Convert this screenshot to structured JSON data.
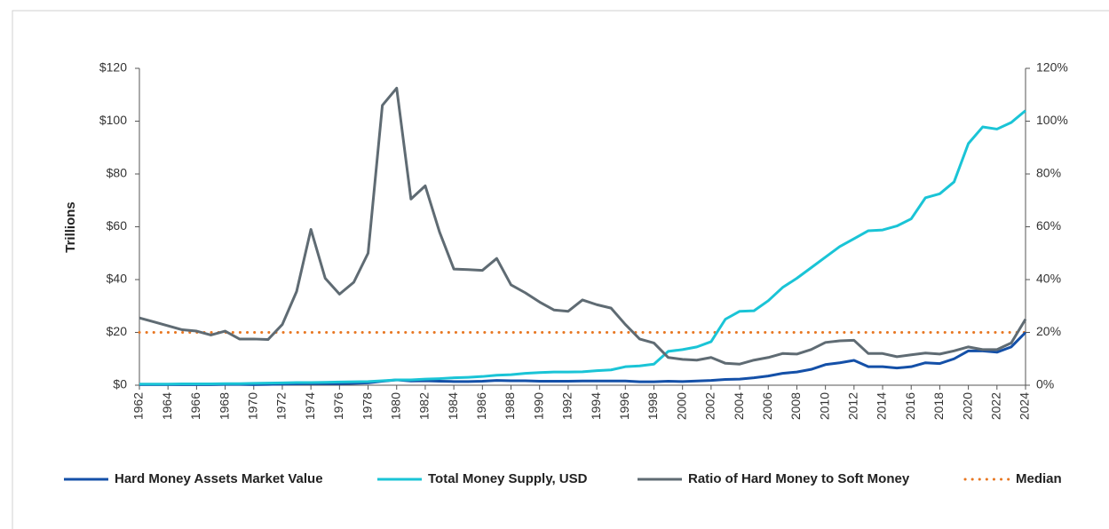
{
  "chart_data": {
    "type": "line",
    "y_label": "Trillions",
    "x": [
      1962,
      1963,
      1964,
      1965,
      1966,
      1967,
      1968,
      1969,
      1970,
      1971,
      1972,
      1973,
      1974,
      1975,
      1976,
      1977,
      1978,
      1979,
      1980,
      1981,
      1982,
      1983,
      1984,
      1985,
      1986,
      1987,
      1988,
      1989,
      1990,
      1991,
      1992,
      1993,
      1994,
      1995,
      1996,
      1997,
      1998,
      1999,
      2000,
      2001,
      2002,
      2003,
      2004,
      2005,
      2006,
      2007,
      2008,
      2009,
      2010,
      2011,
      2012,
      2013,
      2014,
      2015,
      2016,
      2017,
      2018,
      2019,
      2020,
      2021,
      2022,
      2023,
      2024
    ],
    "xlim": [
      1962,
      2024
    ],
    "xticks": [
      1962,
      1964,
      1966,
      1968,
      1970,
      1972,
      1974,
      1976,
      1978,
      1980,
      1982,
      1984,
      1986,
      1988,
      1990,
      1992,
      1994,
      1996,
      1998,
      2000,
      2002,
      2004,
      2006,
      2008,
      2010,
      2012,
      2014,
      2016,
      2018,
      2020,
      2022,
      2024
    ],
    "ylim": [
      0,
      120
    ],
    "yticks": [
      {
        "value": 0,
        "label": "$0"
      },
      {
        "value": 20,
        "label": "$20"
      },
      {
        "value": 40,
        "label": "$40"
      },
      {
        "value": 60,
        "label": "$60"
      },
      {
        "value": 80,
        "label": "$80"
      },
      {
        "value": 100,
        "label": "$100"
      },
      {
        "value": 120,
        "label": "$120"
      }
    ],
    "y2lim": [
      0,
      120
    ],
    "y2ticks": [
      {
        "value": 0,
        "label": "0%"
      },
      {
        "value": 20,
        "label": "20%"
      },
      {
        "value": 40,
        "label": "40%"
      },
      {
        "value": 60,
        "label": "60%"
      },
      {
        "value": 80,
        "label": "80%"
      },
      {
        "value": 100,
        "label": "100%"
      },
      {
        "value": 120,
        "label": "120%"
      }
    ],
    "series": [
      {
        "name": "Hard Money Assets Market Value",
        "color": "#1450a8",
        "values": [
          0.2,
          0.2,
          0.2,
          0.2,
          0.2,
          0.2,
          0.3,
          0.3,
          0.2,
          0.3,
          0.4,
          0.5,
          0.6,
          0.6,
          0.6,
          0.7,
          0.9,
          1.5,
          2.0,
          1.6,
          1.7,
          1.5,
          1.4,
          1.4,
          1.5,
          1.8,
          1.7,
          1.7,
          1.5,
          1.5,
          1.5,
          1.6,
          1.6,
          1.6,
          1.6,
          1.3,
          1.3,
          1.5,
          1.4,
          1.6,
          1.8,
          2.2,
          2.3,
          2.8,
          3.5,
          4.5,
          5.0,
          6.0,
          7.8,
          8.5,
          9.4,
          7.0,
          7.0,
          6.5,
          7.0,
          8.5,
          8.2,
          10.0,
          13.0,
          13.0,
          12.5,
          14.5,
          20.0
        ]
      },
      {
        "name": "Total Money Supply, USD",
        "color": "#1ac4d6",
        "values": [
          0.4,
          0.4,
          0.4,
          0.5,
          0.5,
          0.5,
          0.6,
          0.6,
          0.7,
          0.8,
          0.9,
          1.0,
          1.0,
          1.1,
          1.2,
          1.3,
          1.4,
          1.7,
          2.0,
          2.0,
          2.3,
          2.5,
          2.8,
          3.0,
          3.3,
          3.8,
          4.0,
          4.5,
          4.8,
          5.0,
          5.0,
          5.1,
          5.5,
          5.8,
          7.0,
          7.3,
          8.0,
          12.8,
          13.5,
          14.5,
          16.5,
          25,
          28,
          28.2,
          32,
          37,
          40.5,
          44.5,
          48.5,
          52.5,
          55.5,
          58.5,
          58.8,
          60.3,
          63,
          71,
          72.5,
          77,
          91.5,
          97.8,
          97,
          99.5,
          104
        ]
      },
      {
        "name": "Ratio of Hard Money to Soft Money",
        "color": "#5f6b73",
        "axis": "y2",
        "values": [
          25.5,
          24,
          22.5,
          21,
          20.5,
          19,
          20.5,
          17.5,
          17.5,
          17.3,
          23,
          35.5,
          59,
          40.5,
          34.5,
          39,
          50,
          106,
          112.5,
          70.5,
          75.5,
          58,
          44,
          43.8,
          43.5,
          48,
          38,
          35,
          31.5,
          28.5,
          28,
          32.3,
          30.5,
          29.2,
          23,
          17.5,
          16,
          10.5,
          9.8,
          9.5,
          10.5,
          8.3,
          8,
          9.5,
          10.5,
          12,
          11.8,
          13.5,
          16.2,
          16.8,
          17,
          12,
          12,
          10.8,
          11.5,
          12.2,
          11.8,
          13,
          14.5,
          13.5,
          13.5,
          16,
          25
        ]
      }
    ],
    "reference_lines": [
      {
        "name": "Median",
        "value": 20,
        "axis": "y2",
        "color": "#e87722"
      }
    ]
  }
}
